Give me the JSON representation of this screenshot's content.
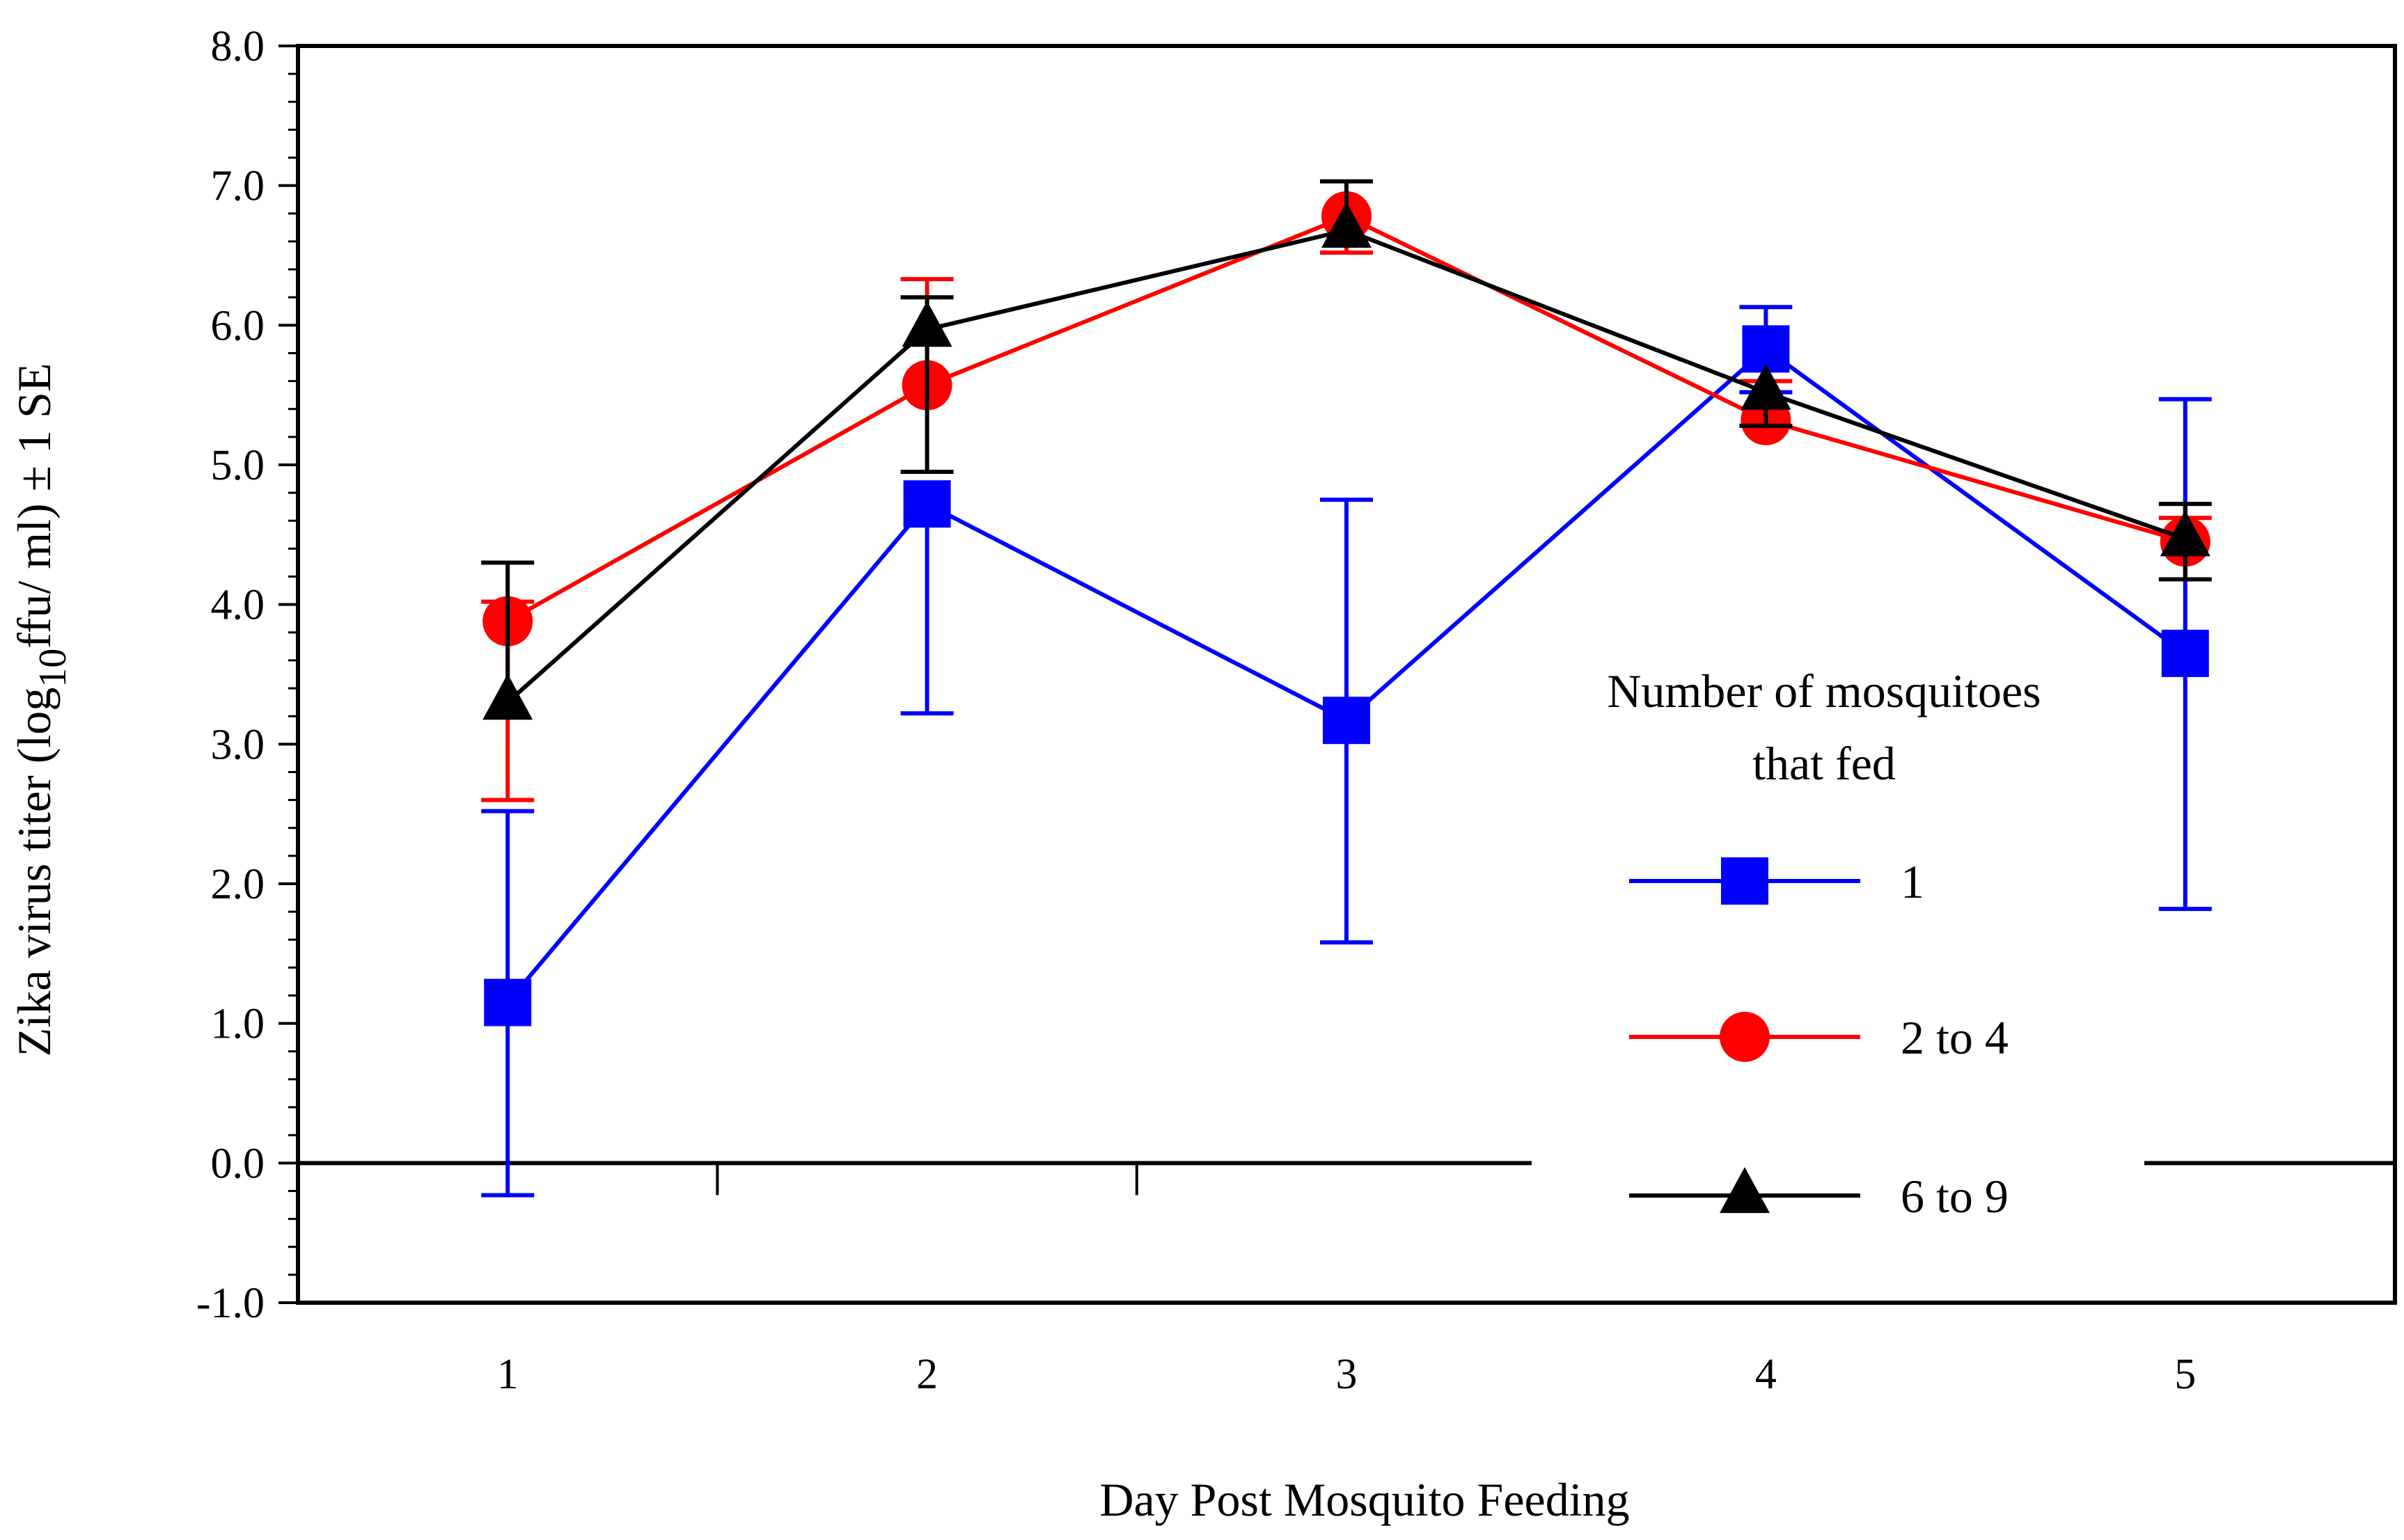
{
  "chart_data": {
    "type": "line",
    "title": "",
    "xlabel": "Day Post Mosquito Feeding",
    "ylabel": {
      "prefix": "Zika virus titer (log",
      "subscript": "10",
      "suffix": "ffu/ ml) ± 1 SE"
    },
    "x": [
      1,
      2,
      3,
      4,
      5
    ],
    "x_tick_labels": [
      "1",
      "2",
      "3",
      "4",
      "5"
    ],
    "xlim": [
      0.5,
      5.5
    ],
    "ylim": [
      -1.0,
      8.0
    ],
    "y_ticks": [
      -1.0,
      0.0,
      1.0,
      2.0,
      3.0,
      4.0,
      5.0,
      6.0,
      7.0,
      8.0
    ],
    "y_tick_labels": [
      "-1.0",
      "0.0",
      "1.0",
      "2.0",
      "3.0",
      "4.0",
      "5.0",
      "6.0",
      "7.0",
      "8.0"
    ],
    "zero_line": 0.0,
    "grid": false,
    "legend": {
      "title_line1": "Number of mosquitoes",
      "title_line2": "that fed",
      "placement": "right-middle"
    },
    "series": [
      {
        "name": "1",
        "color": "#0000ff",
        "marker": "square",
        "values": [
          1.15,
          4.72,
          3.17,
          5.83,
          3.65
        ],
        "err_low": [
          -0.23,
          3.22,
          1.58,
          5.52,
          1.82
        ],
        "err_high": [
          2.52,
          4.72,
          4.75,
          6.13,
          5.47
        ]
      },
      {
        "name": "2 to 4",
        "color": "#ff0000",
        "marker": "circle",
        "values": [
          3.88,
          5.57,
          6.78,
          5.32,
          4.45
        ],
        "err_low": [
          2.6,
          5.57,
          6.52,
          5.32,
          4.45
        ],
        "err_high": [
          4.02,
          6.33,
          6.78,
          5.6,
          4.62
        ]
      },
      {
        "name": "6 to 9",
        "color": "#000000",
        "marker": "triangle",
        "values": [
          3.3,
          5.97,
          6.68,
          5.52,
          4.47
        ],
        "err_low": [
          3.3,
          4.95,
          6.68,
          5.28,
          4.18
        ],
        "err_high": [
          4.3,
          6.2,
          7.03,
          5.52,
          4.72
        ]
      }
    ]
  }
}
